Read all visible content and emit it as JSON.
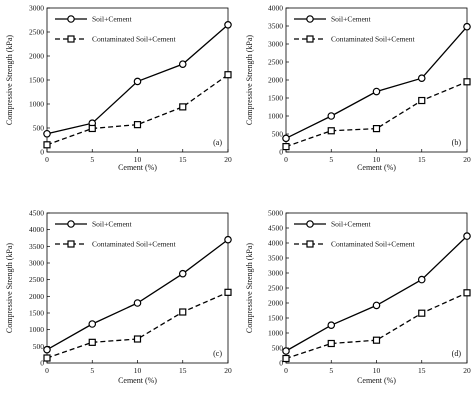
{
  "chart_data": [
    {
      "type": "line",
      "panel_label": "(a)",
      "xlabel": "Cement (%)",
      "ylabel": "Compressive Strength (kPa)",
      "x": [
        0,
        5,
        10,
        15,
        20
      ],
      "xticks": [
        0,
        5,
        10,
        15,
        20
      ],
      "xlim": [
        0,
        20
      ],
      "ylim": [
        0,
        3000
      ],
      "yticks": [
        0,
        500,
        1000,
        1500,
        2000,
        2500,
        3000
      ],
      "grid": false,
      "legend": "top-left",
      "series": [
        {
          "name": "Soil+Cement",
          "values": [
            380,
            600,
            1470,
            1830,
            2650
          ],
          "style": "solid",
          "marker": "circle"
        },
        {
          "name": "Contaminated Soil+Cement",
          "values": [
            150,
            490,
            570,
            940,
            1610
          ],
          "style": "dashed",
          "marker": "square"
        }
      ]
    },
    {
      "type": "line",
      "panel_label": "(b)",
      "xlabel": "Cement (%)",
      "ylabel": "Compressive Strength (kPa)",
      "x": [
        0,
        5,
        10,
        15,
        20
      ],
      "xticks": [
        0,
        5,
        10,
        15,
        20
      ],
      "xlim": [
        0,
        20
      ],
      "ylim": [
        0,
        4000
      ],
      "yticks": [
        0,
        500,
        1000,
        1500,
        2000,
        2500,
        3000,
        3500,
        4000
      ],
      "grid": false,
      "legend": "top-left",
      "series": [
        {
          "name": "Soil+Cement",
          "values": [
            380,
            1000,
            1680,
            2050,
            3480
          ],
          "style": "solid",
          "marker": "circle"
        },
        {
          "name": "Contaminated Soil+Cement",
          "values": [
            150,
            590,
            650,
            1430,
            1950
          ],
          "style": "dashed",
          "marker": "square"
        }
      ]
    },
    {
      "type": "line",
      "panel_label": "(c)",
      "xlabel": "Cement (%)",
      "ylabel": "Compressive Strength (kPa)",
      "x": [
        0,
        5,
        10,
        15,
        20
      ],
      "xticks": [
        0,
        5,
        10,
        15,
        20
      ],
      "xlim": [
        0,
        20
      ],
      "ylim": [
        0,
        4500
      ],
      "yticks": [
        0,
        500,
        1000,
        1500,
        2000,
        2500,
        3000,
        3500,
        4000,
        4500
      ],
      "grid": false,
      "legend": "top-left",
      "series": [
        {
          "name": "Soil+Cement",
          "values": [
            400,
            1170,
            1800,
            2680,
            3700
          ],
          "style": "solid",
          "marker": "circle"
        },
        {
          "name": "Contaminated Soil+Cement",
          "values": [
            150,
            620,
            720,
            1530,
            2120
          ],
          "style": "dashed",
          "marker": "square"
        }
      ]
    },
    {
      "type": "line",
      "panel_label": "(d)",
      "xlabel": "Cement (%)",
      "ylabel": "Compressive Strength (kPa)",
      "x": [
        0,
        5,
        10,
        15,
        20
      ],
      "xticks": [
        0,
        5,
        10,
        15,
        20
      ],
      "xlim": [
        0,
        20
      ],
      "ylim": [
        0,
        5000
      ],
      "yticks": [
        0,
        500,
        1000,
        1500,
        2000,
        2500,
        3000,
        3500,
        4000,
        4500,
        5000
      ],
      "grid": false,
      "legend": "top-left",
      "series": [
        {
          "name": "Soil+Cement",
          "values": [
            400,
            1260,
            1920,
            2780,
            4230
          ],
          "style": "solid",
          "marker": "circle"
        },
        {
          "name": "Contaminated Soil+Cement",
          "values": [
            150,
            650,
            760,
            1660,
            2340
          ],
          "style": "dashed",
          "marker": "square"
        }
      ]
    }
  ],
  "colors": {
    "line": "#000000",
    "background": "#ffffff",
    "marker_fill": "#ffffff"
  }
}
